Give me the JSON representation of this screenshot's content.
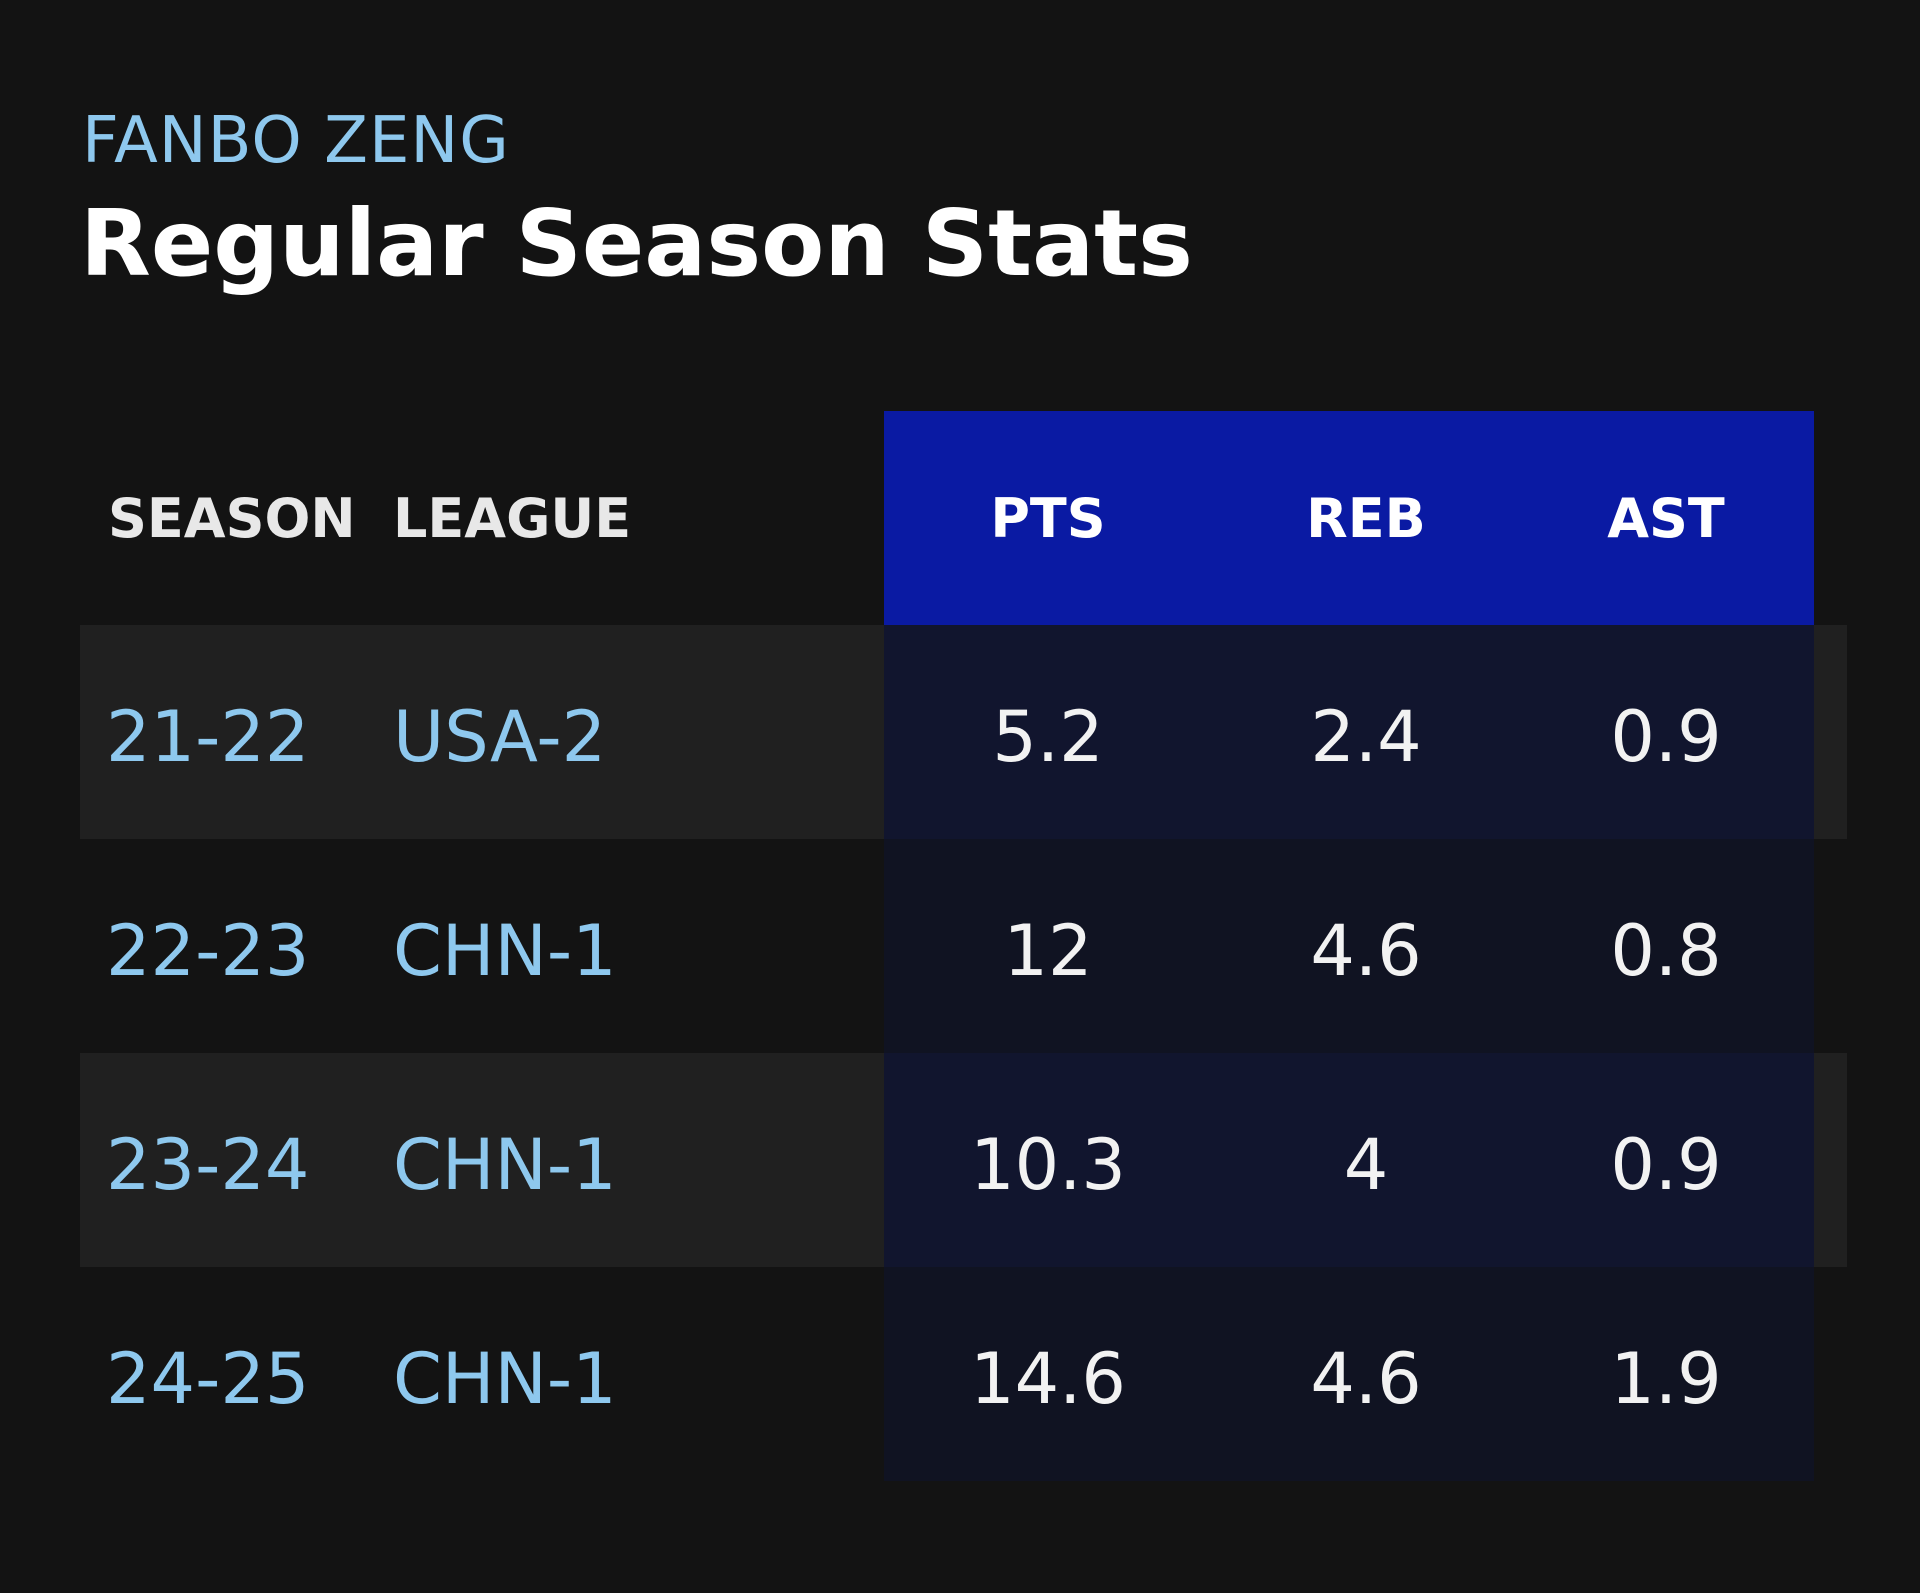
{
  "colors": {
    "background": "#131313",
    "accent_text": "#8ec8ee",
    "header_highlight": "#0a1aa3",
    "row_stripe": "#202020",
    "stat_odd_bg": "#11152e",
    "stat_even_bg": "#101322"
  },
  "header": {
    "player_name": "FANBO ZENG",
    "title": "Regular Season Stats"
  },
  "table": {
    "columns": [
      "SEASON",
      "LEAGUE",
      "PTS",
      "REB",
      "AST"
    ],
    "rows": [
      {
        "season": "21-22",
        "league": "USA-2",
        "pts": "5.2",
        "reb": "2.4",
        "ast": "0.9"
      },
      {
        "season": "22-23",
        "league": "CHN-1",
        "pts": "12",
        "reb": "4.6",
        "ast": "0.8"
      },
      {
        "season": "23-24",
        "league": "CHN-1",
        "pts": "10.3",
        "reb": "4",
        "ast": "0.9"
      },
      {
        "season": "24-25",
        "league": "CHN-1",
        "pts": "14.6",
        "reb": "4.6",
        "ast": "1.9"
      }
    ]
  }
}
